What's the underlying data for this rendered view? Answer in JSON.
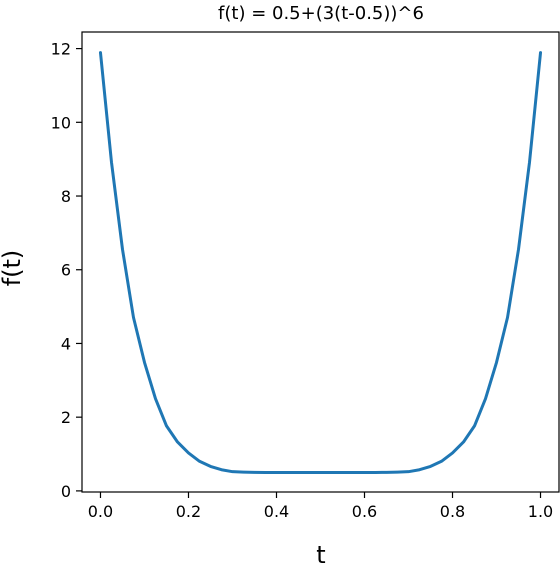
{
  "chart_data": {
    "type": "line",
    "title": "f(t) = 0.5+(3(t-0.5))^6",
    "xlabel": "t",
    "ylabel": "f(t)",
    "xlim": [
      -0.042,
      1.042
    ],
    "ylim": [
      -0.03,
      12.45
    ],
    "xticks": [
      0.0,
      0.2,
      0.4,
      0.6,
      0.8,
      1.0
    ],
    "xtick_labels": [
      "0.0",
      "0.2",
      "0.4",
      "0.6",
      "0.8",
      "1.0"
    ],
    "yticks": [
      0,
      2,
      4,
      6,
      8,
      10,
      12
    ],
    "ytick_labels": [
      "0",
      "2",
      "4",
      "6",
      "8",
      "10",
      "12"
    ],
    "grid": false,
    "line_color": "#1f77b4",
    "series": [
      {
        "x": [
          0.0,
          0.025,
          0.05,
          0.075,
          0.1,
          0.125,
          0.15,
          0.175,
          0.2,
          0.225,
          0.25,
          0.275,
          0.3,
          0.325,
          0.35,
          0.375,
          0.4,
          0.425,
          0.45,
          0.475,
          0.5,
          0.525,
          0.55,
          0.575,
          0.6,
          0.625,
          0.65,
          0.675,
          0.7,
          0.725,
          0.75,
          0.775,
          0.8,
          0.825,
          0.85,
          0.875,
          0.9,
          0.925,
          0.95,
          0.975,
          1.0
        ],
        "y": [
          11.891,
          8.919,
          6.556,
          4.706,
          3.486,
          2.502,
          1.764,
          1.327,
          1.031,
          0.804,
          0.664,
          0.574,
          0.5215,
          0.5095,
          0.5027,
          0.5004,
          0.5007,
          0.5001,
          0.5,
          0.5,
          0.5,
          0.5,
          0.5,
          0.5001,
          0.5007,
          0.5004,
          0.5027,
          0.5095,
          0.5215,
          0.574,
          0.664,
          0.804,
          1.031,
          1.327,
          1.764,
          2.502,
          3.486,
          4.706,
          6.556,
          8.919,
          11.891
        ]
      }
    ]
  }
}
